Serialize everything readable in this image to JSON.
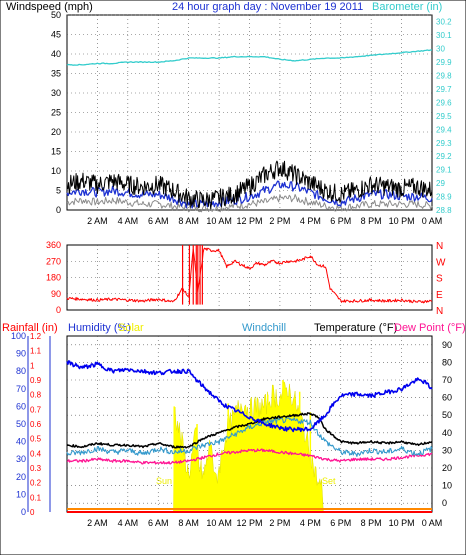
{
  "chart_data": [
    {
      "type": "line",
      "title": "24 hour graph day : November 19 2011",
      "ylabel_left": "Windspeed (mph)",
      "ylabel_right": "Barometer (in)",
      "x_ticks": [
        "2 AM",
        "4 AM",
        "6 AM",
        "8 AM",
        "10 AM",
        "12 PM",
        "2 PM",
        "4 PM",
        "6 PM",
        "8 PM",
        "10 PM",
        "0 AM"
      ],
      "y_left_ticks": [
        0,
        5,
        10,
        15,
        20,
        25,
        30,
        35,
        40,
        45,
        50
      ],
      "ylim_left": [
        0,
        50
      ],
      "y_right_ticks": [
        "28.8",
        "28.9",
        "29",
        "29.1",
        "29.2",
        "29.3",
        "29.4",
        "29.5",
        "29.6",
        "29.7",
        "29.8",
        "29.9",
        "30",
        "30.1",
        "30.2"
      ],
      "ylim_right": [
        28.8,
        30.25
      ],
      "grid": true,
      "x_hours": [
        0,
        1,
        2,
        3,
        4,
        5,
        6,
        7,
        8,
        9,
        10,
        11,
        12,
        13,
        14,
        15,
        16,
        17,
        18,
        19,
        20,
        21,
        22,
        23,
        24
      ],
      "series": [
        {
          "name": "Barometer (in)",
          "axis": "right",
          "color": "#33cccc",
          "values": [
            29.88,
            29.88,
            29.89,
            29.89,
            29.9,
            29.9,
            29.9,
            29.91,
            29.93,
            29.93,
            29.93,
            29.94,
            29.94,
            29.94,
            29.92,
            29.91,
            29.92,
            29.93,
            29.93,
            29.94,
            29.95,
            29.96,
            29.97,
            29.98,
            29.99
          ]
        },
        {
          "name": "",
          "axis": "left",
          "color": "#000000",
          "values": [
            6.5,
            7.5,
            6.5,
            7.5,
            6.5,
            6,
            6.5,
            5,
            3,
            2.5,
            3,
            4,
            6,
            9,
            11,
            9,
            7,
            5,
            4,
            5,
            6.5,
            6,
            5.5,
            6,
            5
          ]
        },
        {
          "name": "",
          "axis": "left",
          "color": "#1e32d2",
          "values": [
            4.5,
            5,
            4.5,
            5,
            4.5,
            4,
            4,
            3,
            1.5,
            1.5,
            2,
            2.5,
            3.5,
            5,
            6.5,
            6,
            4.5,
            3,
            2,
            3,
            4,
            4,
            3.5,
            3.5,
            3
          ]
        },
        {
          "name": "",
          "axis": "left",
          "color": "#8c8c8c",
          "values": [
            2,
            2.5,
            2,
            2.5,
            2,
            1.5,
            1.5,
            1,
            0.5,
            0.5,
            0.5,
            1,
            1.5,
            2,
            3,
            3,
            2,
            1,
            0.5,
            1,
            1.5,
            1.5,
            1.5,
            1.5,
            1
          ]
        }
      ]
    },
    {
      "type": "scatter",
      "ylabel_right": [
        "N",
        "W",
        "S",
        "E",
        "N"
      ],
      "y_ticks": [
        0,
        90,
        180,
        270,
        360
      ],
      "ylim": [
        0,
        360
      ],
      "x_ticks": [
        "2 AM",
        "4 AM",
        "6 AM",
        "8 AM",
        "10 AM",
        "12 PM",
        "2 PM",
        "4 PM",
        "6 PM",
        "8 PM",
        "10 PM",
        "0 AM"
      ],
      "grid": true,
      "series": [
        {
          "name": "",
          "color": "#ff0000",
          "x_hours": [
            0,
            1,
            2,
            3,
            4,
            5,
            6,
            7,
            7.6,
            8,
            8.3,
            8.6,
            9,
            9.5,
            10,
            10.5,
            11,
            11.5,
            12,
            12.5,
            13,
            13.5,
            14,
            14.5,
            15,
            15.5,
            16,
            16.5,
            17,
            17.3,
            18,
            19,
            20,
            21,
            22,
            23,
            24
          ],
          "values": [
            65,
            60,
            55,
            60,
            55,
            50,
            60,
            45,
            120,
            70,
            340,
            100,
            340,
            330,
            330,
            240,
            270,
            250,
            230,
            260,
            250,
            270,
            260,
            270,
            270,
            280,
            300,
            250,
            240,
            120,
            50,
            50,
            55,
            50,
            55,
            45,
            50
          ]
        }
      ]
    },
    {
      "type": "line",
      "legend": [
        "Rainfall (in)",
        "Humidity (%)",
        "Solar",
        "Windchill",
        "Temperature (°F)",
        "Dew Point (°F)"
      ],
      "ylim_rain": [
        0,
        100
      ],
      "y_rain_ticks": [
        0,
        10,
        20,
        30,
        40,
        50,
        60,
        70,
        80,
        90,
        100
      ],
      "y_solar_ticks": [
        "0",
        "0.1",
        "0.2",
        "0.3",
        "0.4",
        "0.5",
        "0.6",
        "0.7",
        "0.8",
        "0.9",
        "1",
        "1.1",
        "1.2"
      ],
      "ylim_temp": [
        -5,
        95
      ],
      "y_temp_ticks": [
        0,
        10,
        20,
        30,
        40,
        50,
        60,
        70,
        80,
        90
      ],
      "x_ticks": [
        "2 AM",
        "4 AM",
        "6 AM",
        "8 AM",
        "10 AM",
        "12 PM",
        "2 PM",
        "4 PM",
        "6 PM",
        "8 PM",
        "10 PM",
        "0 AM"
      ],
      "grid": true,
      "annotations": {
        "sunrise": "Sun",
        "sunset": "Set"
      },
      "series": [
        {
          "name": "Humidity (%)",
          "axis": "humidity",
          "color": "#0000ee",
          "x_hours": [
            0,
            1,
            2,
            3,
            4,
            5,
            6,
            7,
            8,
            8.5,
            9,
            9.5,
            10,
            10.5,
            11,
            11.5,
            12,
            12.5,
            13,
            13.5,
            14,
            14.5,
            15,
            15.5,
            16,
            16.5,
            17,
            17.5,
            18,
            19,
            20,
            21,
            22,
            23,
            23.5,
            24
          ],
          "values": [
            85,
            82,
            84,
            80,
            81,
            80,
            79,
            80,
            80,
            75,
            71,
            67,
            63,
            60,
            58,
            56,
            54,
            52,
            50,
            49,
            48,
            47,
            47,
            47,
            47,
            51,
            55,
            61,
            66,
            67,
            66,
            68,
            70,
            75,
            74,
            70
          ]
        },
        {
          "name": "Temperature (°F)",
          "axis": "temp",
          "color": "#000000",
          "x_hours": [
            0,
            1,
            2,
            3,
            4,
            5,
            6,
            7,
            8,
            9,
            10,
            11,
            12,
            13,
            14,
            15,
            16,
            16.5,
            17,
            18,
            19,
            20,
            21,
            22,
            23,
            24
          ],
          "values": [
            33,
            32,
            34,
            33,
            33,
            32,
            34,
            32,
            32,
            37,
            40,
            43,
            45,
            48,
            49,
            50,
            51,
            49,
            42,
            35,
            34,
            35,
            34,
            35,
            33,
            35
          ]
        },
        {
          "name": "Windchill",
          "axis": "temp",
          "color": "#3399cc",
          "x_hours": [
            0,
            1,
            2,
            3,
            4,
            5,
            6,
            7,
            8,
            9,
            10,
            11,
            12,
            13,
            14,
            15,
            16,
            16.5,
            17,
            18,
            19,
            20,
            21,
            22,
            23,
            24
          ],
          "values": [
            28,
            29,
            31,
            29,
            30,
            28,
            31,
            29,
            30,
            33,
            35,
            39,
            43,
            46,
            47,
            47,
            46,
            40,
            35,
            29,
            28,
            30,
            29,
            31,
            28,
            31
          ]
        },
        {
          "name": "Dew Point (°F)",
          "axis": "temp",
          "color": "#ff1493",
          "x_hours": [
            0,
            1,
            2,
            3,
            4,
            5,
            6,
            7,
            8,
            9,
            10,
            11,
            12,
            13,
            14,
            15,
            16,
            17,
            18,
            19,
            20,
            21,
            22,
            23,
            24
          ],
          "values": [
            24,
            24,
            25,
            24,
            24,
            23,
            23,
            23,
            24,
            26,
            28,
            29,
            30,
            30,
            29,
            28,
            27,
            25,
            24,
            25,
            25,
            25,
            26,
            27,
            28
          ]
        },
        {
          "name": "Solar",
          "axis": "solar",
          "color": "#ffff00",
          "x_hours": [
            7.0,
            7.05,
            7.5,
            8,
            8.5,
            8.7,
            9,
            9.5,
            9.7,
            10,
            10.5,
            11,
            11.5,
            12,
            12.5,
            13,
            13.5,
            14,
            14.5,
            15,
            15.5,
            16,
            16.5,
            16.8,
            16.85
          ],
          "values": [
            0,
            0.7,
            0.5,
            0.25,
            0.55,
            0.3,
            0.25,
            0.5,
            0.2,
            0.3,
            0.55,
            0.65,
            0.75,
            0.7,
            0.72,
            0.72,
            0.8,
            0.78,
            0.85,
            0.75,
            0.6,
            0.4,
            0.2,
            0.15,
            0
          ]
        },
        {
          "name": "Rainfall (in)",
          "axis": "rain",
          "color": "#ff0000",
          "x_hours": [
            0,
            24
          ],
          "values": [
            0,
            0
          ]
        }
      ]
    }
  ]
}
